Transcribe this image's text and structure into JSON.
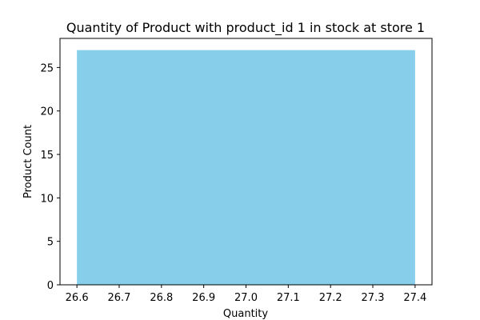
{
  "chart_data": {
    "type": "bar",
    "title": "Quantity of Product with product_id 1 in stock at store 1",
    "xlabel": "Quantity",
    "ylabel": "Product Count",
    "bars": [
      {
        "x_start": 26.6,
        "x_end": 27.4,
        "value": 27
      }
    ],
    "xlim": [
      26.56,
      27.44
    ],
    "ylim": [
      0,
      28.35
    ],
    "x_ticks": [
      "26.6",
      "26.7",
      "26.8",
      "26.9",
      "27.0",
      "27.1",
      "27.2",
      "27.3",
      "27.4"
    ],
    "y_ticks": [
      "0",
      "5",
      "10",
      "15",
      "20",
      "25"
    ],
    "bar_color": "#87ceeb",
    "grid": false,
    "legend": "none"
  }
}
